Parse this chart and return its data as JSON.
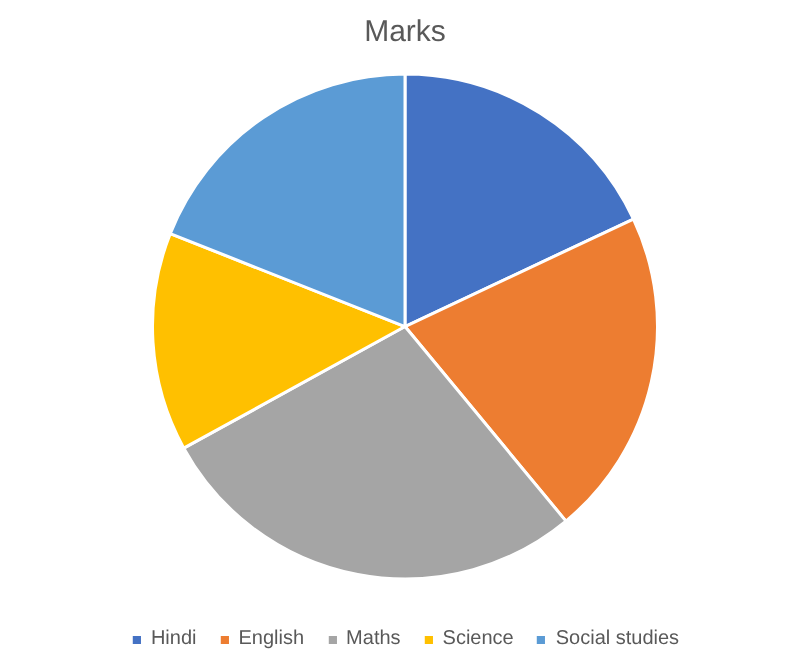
{
  "chart_data": {
    "type": "pie",
    "title": "Marks",
    "categories": [
      "Hindi",
      "English",
      "Maths",
      "Science",
      "Social studies"
    ],
    "values": [
      18,
      21,
      28,
      14,
      19
    ],
    "colors": [
      "#4472c4",
      "#ed7d31",
      "#a5a5a5",
      "#ffc000",
      "#5b9bd5"
    ],
    "legend": "bottom"
  }
}
